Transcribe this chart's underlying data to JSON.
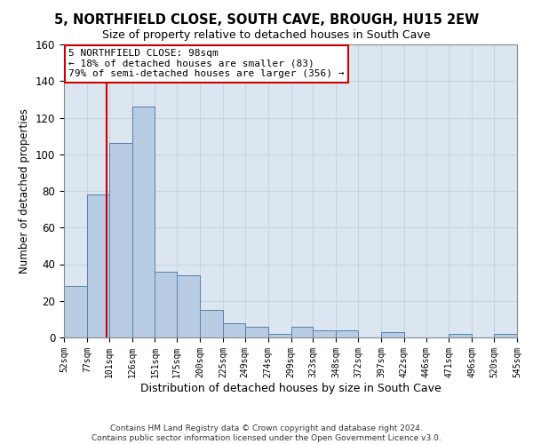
{
  "title": "5, NORTHFIELD CLOSE, SOUTH CAVE, BROUGH, HU15 2EW",
  "subtitle": "Size of property relative to detached houses in South Cave",
  "xlabel": "Distribution of detached houses by size in South Cave",
  "ylabel": "Number of detached properties",
  "bar_color": "#b8cce4",
  "bar_edge_color": "#5580b0",
  "grid_color": "#c8d4e0",
  "background_color": "#dce6f0",
  "bins": [
    52,
    77,
    101,
    126,
    151,
    175,
    200,
    225,
    249,
    274,
    299,
    323,
    348,
    372,
    397,
    422,
    446,
    471,
    496,
    520,
    545
  ],
  "values": [
    28,
    78,
    106,
    126,
    36,
    34,
    15,
    8,
    6,
    2,
    6,
    4,
    4,
    0,
    3,
    0,
    0,
    2,
    0,
    2
  ],
  "ylim": [
    0,
    160
  ],
  "yticks": [
    0,
    20,
    40,
    60,
    80,
    100,
    120,
    140,
    160
  ],
  "property_size": 98,
  "annotation_text": "5 NORTHFIELD CLOSE: 98sqm\n← 18% of detached houses are smaller (83)\n79% of semi-detached houses are larger (356) →",
  "annotation_box_color": "#ffffff",
  "annotation_box_edge_color": "#cc0000",
  "vline_color": "#cc0000",
  "footer1": "Contains HM Land Registry data © Crown copyright and database right 2024.",
  "footer2": "Contains public sector information licensed under the Open Government Licence v3.0."
}
